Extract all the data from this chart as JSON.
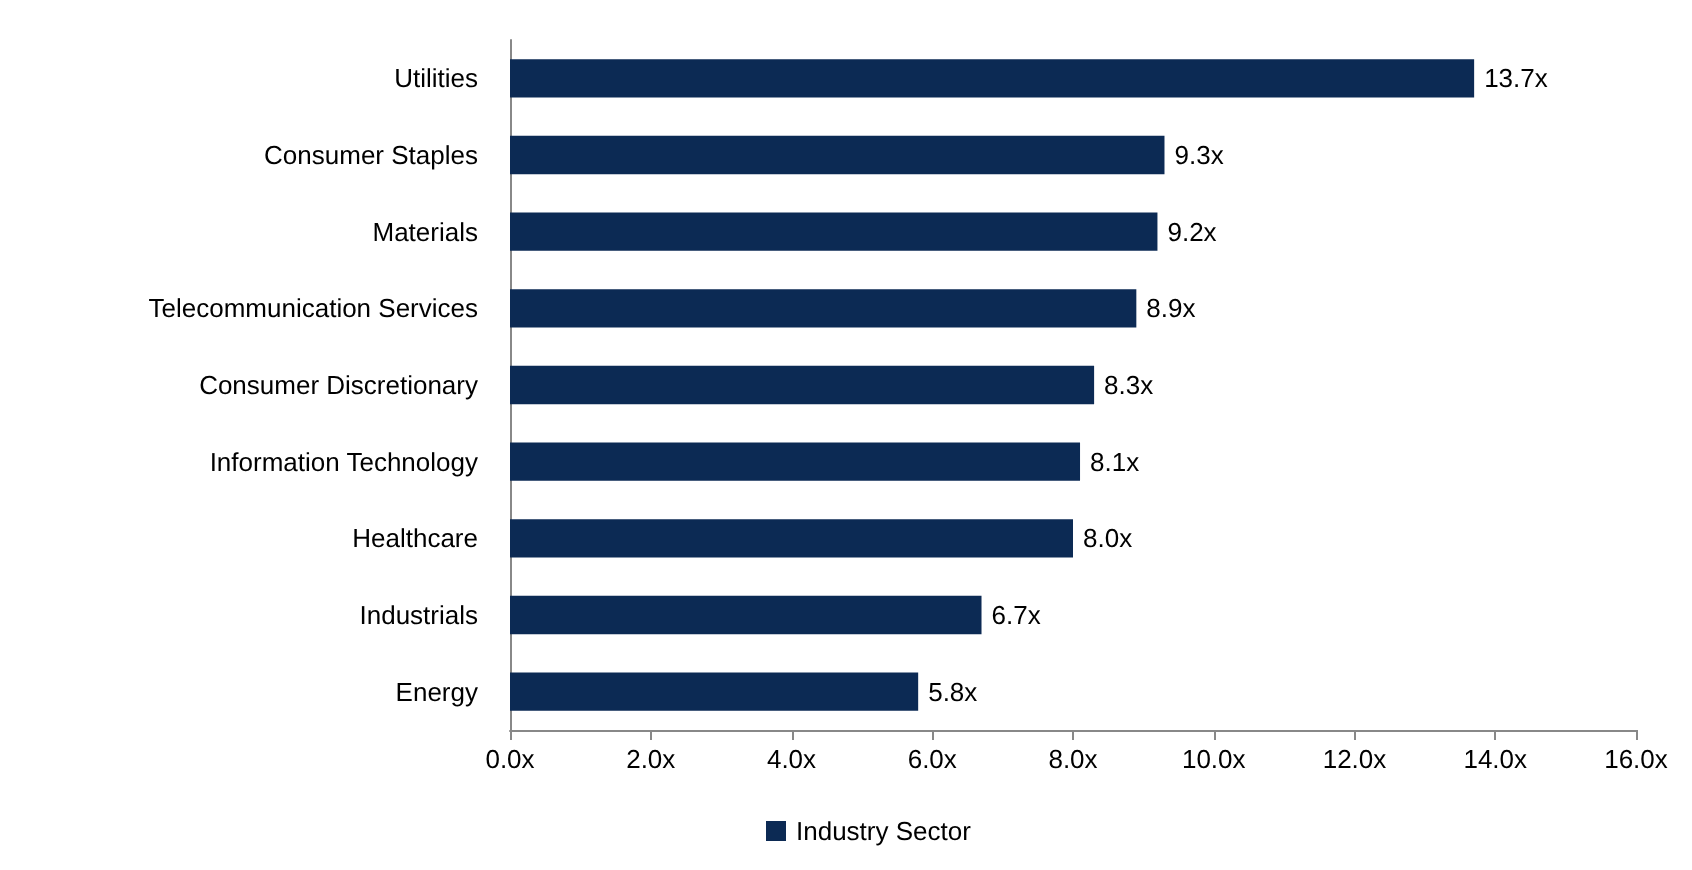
{
  "chart_data": {
    "type": "bar",
    "orientation": "horizontal",
    "categories": [
      "Utilities",
      "Consumer Staples",
      "Materials",
      "Telecommunication Services",
      "Consumer Discretionary",
      "Information Technology",
      "Healthcare",
      "Industrials",
      "Energy"
    ],
    "series": [
      {
        "name": "Industry Sector",
        "color": "#0c2a54",
        "values": [
          13.7,
          9.3,
          9.2,
          8.9,
          8.3,
          8.1,
          8.0,
          6.7,
          5.8
        ],
        "value_labels": [
          "13.7x",
          "9.3x",
          "9.2x",
          "8.9x",
          "8.3x",
          "8.1x",
          "8.0x",
          "6.7x",
          "5.8x"
        ]
      }
    ],
    "xlim": [
      0,
      16
    ],
    "xticks": [
      {
        "value": 0,
        "label": "0.0x"
      },
      {
        "value": 2,
        "label": "2.0x"
      },
      {
        "value": 4,
        "label": "4.0x"
      },
      {
        "value": 6,
        "label": "6.0x"
      },
      {
        "value": 8,
        "label": "8.0x"
      },
      {
        "value": 10,
        "label": "10.0x"
      },
      {
        "value": 12,
        "label": "12.0x"
      },
      {
        "value": 14,
        "label": "14.0x"
      },
      {
        "value": 16,
        "label": "16.0x"
      }
    ],
    "grid": false,
    "legend": "bottom"
  }
}
